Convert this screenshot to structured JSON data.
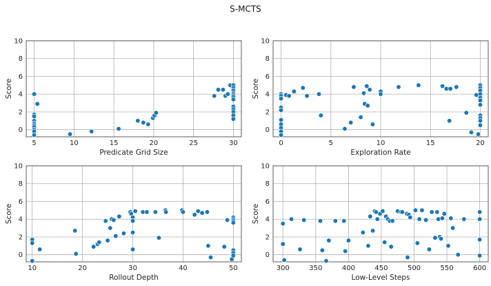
{
  "figure": {
    "title": "S-MCTS"
  },
  "colors": {
    "point": "#1f77b4"
  },
  "chart_data": [
    {
      "type": "scatter",
      "xlabel": "Predicate Grid Size",
      "ylabel": "Score",
      "xlim": [
        4,
        31
      ],
      "ylim": [
        -0.8,
        10
      ],
      "xticks": [
        5,
        10,
        15,
        20,
        25,
        30
      ],
      "yticks": [
        0,
        2,
        4,
        6,
        8,
        10
      ],
      "grid": true,
      "points": [
        [
          5,
          4.0
        ],
        [
          5,
          1.7
        ],
        [
          5,
          1.5
        ],
        [
          5,
          1.0
        ],
        [
          5,
          0.7
        ],
        [
          5,
          0.5
        ],
        [
          5,
          0.3
        ],
        [
          5,
          0.0
        ],
        [
          5,
          -0.2
        ],
        [
          5,
          -0.6
        ],
        [
          5.4,
          2.9
        ],
        [
          9.5,
          -0.5
        ],
        [
          12.2,
          -0.2
        ],
        [
          15.6,
          0.1
        ],
        [
          18,
          1.0
        ],
        [
          18.7,
          0.8
        ],
        [
          19.3,
          0.6
        ],
        [
          19.9,
          1.3
        ],
        [
          20.1,
          1.6
        ],
        [
          20.3,
          1.9
        ],
        [
          27.6,
          3.8
        ],
        [
          28.1,
          4.5
        ],
        [
          28.7,
          4.5
        ],
        [
          29.0,
          3.8
        ],
        [
          29.3,
          4.0
        ],
        [
          29.6,
          5.0
        ],
        [
          30,
          5.0
        ],
        [
          30,
          4.7
        ],
        [
          30,
          4.4
        ],
        [
          30,
          4.1
        ],
        [
          30,
          3.9
        ],
        [
          30,
          3.7
        ],
        [
          30,
          3.4
        ],
        [
          30,
          2.6
        ],
        [
          30,
          2.3
        ],
        [
          30,
          2.0
        ],
        [
          30,
          1.6
        ],
        [
          30,
          1.2
        ]
      ]
    },
    {
      "type": "scatter",
      "xlabel": "Exploration Rate",
      "ylabel": "Score",
      "xlim": [
        -0.8,
        20.8
      ],
      "ylim": [
        -0.8,
        10
      ],
      "xticks": [
        0,
        5,
        10,
        15,
        20
      ],
      "yticks": [
        0,
        2,
        4,
        6,
        8,
        10
      ],
      "grid": true,
      "points": [
        [
          0,
          4.0
        ],
        [
          0,
          3.8
        ],
        [
          0,
          3.5
        ],
        [
          0,
          2.5
        ],
        [
          0,
          2.2
        ],
        [
          0,
          1.1
        ],
        [
          0,
          0.6
        ],
        [
          0,
          0.2
        ],
        [
          0,
          -0.2
        ],
        [
          0,
          -0.6
        ],
        [
          0.5,
          3.9
        ],
        [
          0.8,
          3.8
        ],
        [
          1.3,
          4.3
        ],
        [
          2.2,
          4.7
        ],
        [
          2.6,
          3.8
        ],
        [
          3.8,
          4.0
        ],
        [
          4.0,
          1.6
        ],
        [
          6.4,
          0.1
        ],
        [
          7.0,
          0.8
        ],
        [
          7.3,
          4.8
        ],
        [
          8.0,
          1.4
        ],
        [
          8.3,
          4.1
        ],
        [
          8.4,
          2.9
        ],
        [
          8.6,
          4.9
        ],
        [
          8.7,
          2.7
        ],
        [
          8.9,
          4.5
        ],
        [
          9.2,
          0.6
        ],
        [
          10,
          4.3
        ],
        [
          10,
          4.0
        ],
        [
          11.8,
          4.8
        ],
        [
          13.8,
          5.0
        ],
        [
          16.2,
          4.9
        ],
        [
          16.6,
          4.6
        ],
        [
          17.0,
          4.6
        ],
        [
          16.9,
          1.0
        ],
        [
          17.6,
          4.8
        ],
        [
          18.6,
          1.9
        ],
        [
          19.1,
          -0.3
        ],
        [
          19.6,
          3.9
        ],
        [
          19.8,
          -0.5
        ],
        [
          20,
          5.0
        ],
        [
          20,
          4.7
        ],
        [
          20,
          4.4
        ],
        [
          20,
          4.0
        ],
        [
          20,
          3.6
        ],
        [
          20,
          3.3
        ],
        [
          20,
          2.8
        ],
        [
          20,
          1.6
        ],
        [
          20,
          1.3
        ],
        [
          20,
          1.0
        ],
        [
          20,
          0.5
        ]
      ]
    },
    {
      "type": "scatter",
      "xlabel": "Rollout Depth",
      "ylabel": "Score",
      "xlim": [
        8.8,
        51.6
      ],
      "ylim": [
        -0.8,
        10
      ],
      "xticks": [
        10,
        20,
        30,
        40,
        50
      ],
      "yticks": [
        0,
        2,
        4,
        6,
        8,
        10
      ],
      "grid": true,
      "points": [
        [
          10,
          1.7
        ],
        [
          10,
          1.3
        ],
        [
          10,
          -0.7
        ],
        [
          11.5,
          0.6
        ],
        [
          18.5,
          2.7
        ],
        [
          18.7,
          0.1
        ],
        [
          22.2,
          0.9
        ],
        [
          23.0,
          1.2
        ],
        [
          23.3,
          1.4
        ],
        [
          24.6,
          3.8
        ],
        [
          25.0,
          1.6
        ],
        [
          25.5,
          3.0
        ],
        [
          25.8,
          4.0
        ],
        [
          26.2,
          3.9
        ],
        [
          26.6,
          2.1
        ],
        [
          27.3,
          4.3
        ],
        [
          28.2,
          2.4
        ],
        [
          29.5,
          4.8
        ],
        [
          29.7,
          4.6
        ],
        [
          30,
          4.2
        ],
        [
          30,
          3.8
        ],
        [
          30,
          2.5
        ],
        [
          30,
          0.6
        ],
        [
          30.5,
          4.9
        ],
        [
          32.0,
          4.8
        ],
        [
          32.8,
          4.8
        ],
        [
          34.5,
          4.8
        ],
        [
          35.2,
          1.9
        ],
        [
          36.5,
          5.0
        ],
        [
          36.6,
          4.8
        ],
        [
          39.8,
          5.0
        ],
        [
          40.0,
          4.8
        ],
        [
          42.3,
          4.5
        ],
        [
          43.0,
          4.9
        ],
        [
          43.8,
          4.7
        ],
        [
          44.8,
          4.8
        ],
        [
          45.0,
          1.0
        ],
        [
          45.5,
          -0.3
        ],
        [
          48.2,
          0.9
        ],
        [
          48.8,
          3.9
        ],
        [
          49.7,
          -0.5
        ],
        [
          50,
          4.2
        ],
        [
          50,
          4.0
        ],
        [
          50,
          3.8
        ],
        [
          50,
          3.6
        ],
        [
          50,
          0.5
        ],
        [
          50,
          0.2
        ],
        [
          50,
          -0.1
        ]
      ]
    },
    {
      "type": "scatter",
      "xlabel": "Low-Level Steps",
      "ylabel": "Score",
      "xlim": [
        285,
        613
      ],
      "ylim": [
        -0.8,
        10
      ],
      "xticks": [
        300,
        350,
        400,
        450,
        500,
        550,
        600
      ],
      "yticks": [
        0,
        2,
        4,
        6,
        8,
        10
      ],
      "grid": true,
      "points": [
        [
          300,
          3.5
        ],
        [
          300,
          1.2
        ],
        [
          302,
          -0.6
        ],
        [
          313,
          4.0
        ],
        [
          326,
          0.6
        ],
        [
          332,
          3.9
        ],
        [
          357,
          3.8
        ],
        [
          360,
          0.5
        ],
        [
          366,
          -0.7
        ],
        [
          370,
          1.6
        ],
        [
          380,
          3.8
        ],
        [
          393,
          3.8
        ],
        [
          395,
          0.4
        ],
        [
          400,
          1.6
        ],
        [
          422,
          2.5
        ],
        [
          430,
          1.0
        ],
        [
          433,
          4.3
        ],
        [
          437,
          2.7
        ],
        [
          440,
          4.9
        ],
        [
          442,
          4.8
        ],
        [
          444,
          4.0
        ],
        [
          448,
          4.6
        ],
        [
          452,
          4.9
        ],
        [
          455,
          1.4
        ],
        [
          457,
          4.3
        ],
        [
          460,
          4.0
        ],
        [
          463,
          3.8
        ],
        [
          465,
          0.9
        ],
        [
          467,
          3.8
        ],
        [
          475,
          4.9
        ],
        [
          480,
          4.8
        ],
        [
          482,
          4.8
        ],
        [
          489,
          4.6
        ],
        [
          490,
          -0.3
        ],
        [
          492,
          4.5
        ],
        [
          494,
          4.2
        ],
        [
          502,
          5.0
        ],
        [
          505,
          1.3
        ],
        [
          508,
          4.0
        ],
        [
          512,
          5.0
        ],
        [
          518,
          3.9
        ],
        [
          523,
          0.6
        ],
        [
          527,
          4.8
        ],
        [
          532,
          1.9
        ],
        [
          535,
          4.8
        ],
        [
          537,
          4.0
        ],
        [
          539,
          2.0
        ],
        [
          541,
          1.8
        ],
        [
          543,
          4.1
        ],
        [
          546,
          4.6
        ],
        [
          552,
          1.0
        ],
        [
          556,
          4.1
        ],
        [
          559,
          3.0
        ],
        [
          567,
          0.0
        ],
        [
          576,
          4.0
        ],
        [
          600,
          4.8
        ],
        [
          600,
          4.0
        ],
        [
          600,
          1.7
        ],
        [
          600,
          -0.1
        ]
      ]
    }
  ]
}
